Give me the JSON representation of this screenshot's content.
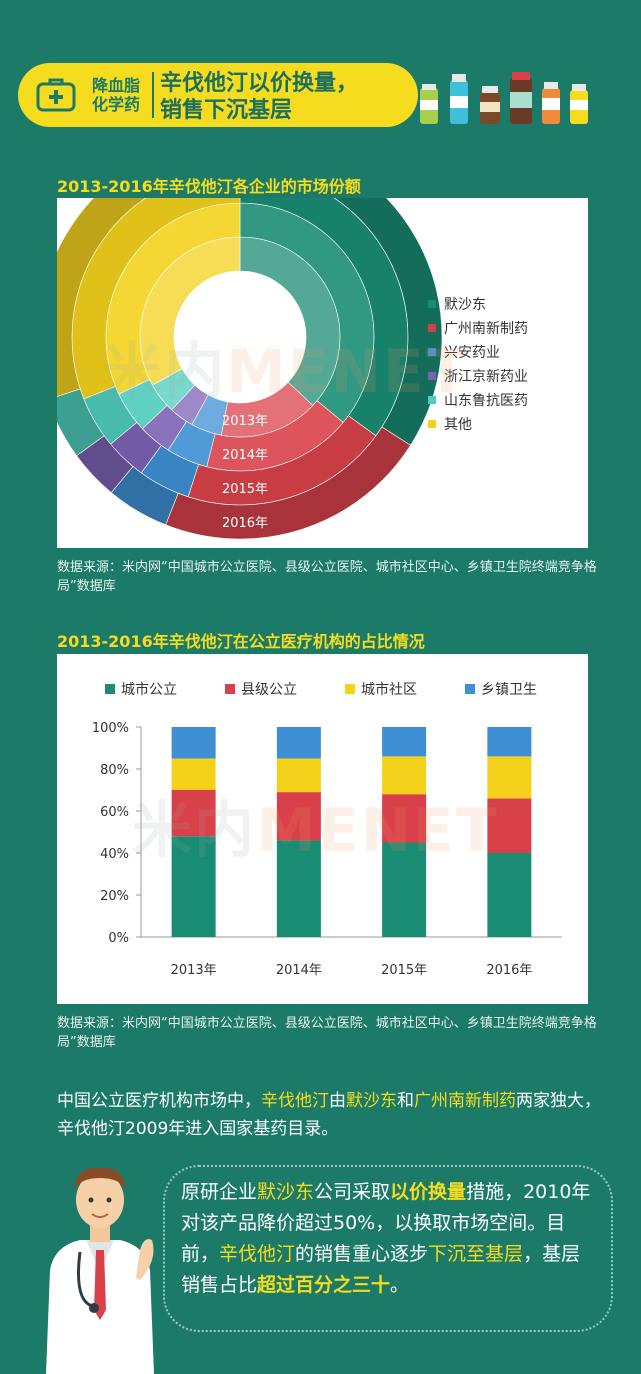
{
  "header": {
    "category_line1": "降血脂",
    "category_line2": "化学药",
    "title_line1": "辛伐他汀以价换量，",
    "title_line2": "销售下沉基层"
  },
  "watermark": {
    "cn": "米内",
    "en": "MENET"
  },
  "colors": {
    "background": "#1b7a68",
    "accent_yellow": "#f6dc1e",
    "mosadong": "#1a8c73",
    "guangzhou": "#d9414a",
    "xingan": "#3e8fd4",
    "zhejiang": "#7c62b4",
    "shandong": "#4ecbbb",
    "others": "#f4d21c"
  },
  "section1": {
    "title": "2013-2016年辛伐他汀各企业的市场份额",
    "source": "数据来源：米内网“中国城市公立医院、县级公立医院、城市社区中心、乡镇卫生院终端竞争格局”数据库"
  },
  "section2": {
    "title": "2013-2016年辛伐他汀在公立医疗机构的占比情况",
    "source": "数据来源：米内网“中国城市公立医院、县级公立医院、城市社区中心、乡镇卫生院终端竞争格局”数据库"
  },
  "paragraph": {
    "p1": "中国公立医疗机构市场中，",
    "p2": "辛伐他汀",
    "p3": "由",
    "p4": "默沙东",
    "p5": "和",
    "p6": "广州南新制药",
    "p7": "两家独大，辛伐他汀2009年进入国家基药目录。"
  },
  "bubble": {
    "b1": "原研企业",
    "b2": "默沙东",
    "b3": "公司采取",
    "b4": "以价换量",
    "b5": "措施，2010年对该产品降价超过50%，以换取市场空间。目前，",
    "b6": "辛伐他汀",
    "b7": "的销售重心逐步",
    "b8": "下沉至基层",
    "b9": "，基层销售占比",
    "b10": "超过百分之三十",
    "b11": "。"
  },
  "chart_data": [
    {
      "type": "donut",
      "title": "2013-2016年辛伐他汀各企业的市场份额",
      "rings": [
        "2013年",
        "2014年",
        "2015年",
        "2016年"
      ],
      "series": [
        {
          "name": "默沙东",
          "color": "#1a8c73",
          "values": [
            37,
            36,
            35,
            34
          ]
        },
        {
          "name": "广州南新制药",
          "color": "#d9414a",
          "values": [
            16,
            18,
            20,
            22
          ]
        },
        {
          "name": "兴安药业",
          "color": "#3e8fd4",
          "values": [
            5,
            5,
            5,
            5
          ]
        },
        {
          "name": "浙江京新药业",
          "color": "#7c62b4",
          "values": [
            4,
            4,
            4,
            4
          ]
        },
        {
          "name": "山东鲁抗医药",
          "color": "#4ecbbb",
          "values": [
            5,
            5,
            5,
            5
          ]
        },
        {
          "name": "其他",
          "color": "#f4d21c",
          "values": [
            33,
            32,
            31,
            30
          ]
        }
      ]
    },
    {
      "type": "bar",
      "stacked": true,
      "percent": true,
      "title": "2013-2016年辛伐他汀在公立医疗机构的占比情况",
      "categories": [
        "2013年",
        "2014年",
        "2015年",
        "2016年"
      ],
      "ylim": [
        0,
        100
      ],
      "yticks": [
        "0%",
        "20%",
        "40%",
        "60%",
        "80%",
        "100%"
      ],
      "legend_position": "top",
      "grid": false,
      "series": [
        {
          "name": "城市公立",
          "color": "#1a8c73",
          "values": [
            48,
            46,
            45,
            40
          ]
        },
        {
          "name": "县级公立",
          "color": "#d9414a",
          "values": [
            22,
            23,
            23,
            26
          ]
        },
        {
          "name": "城市社区",
          "color": "#f4d21c",
          "values": [
            15,
            16,
            18,
            20
          ]
        },
        {
          "name": "乡镇卫生",
          "color": "#3e8fd4",
          "values": [
            15,
            15,
            14,
            14
          ]
        }
      ]
    }
  ]
}
